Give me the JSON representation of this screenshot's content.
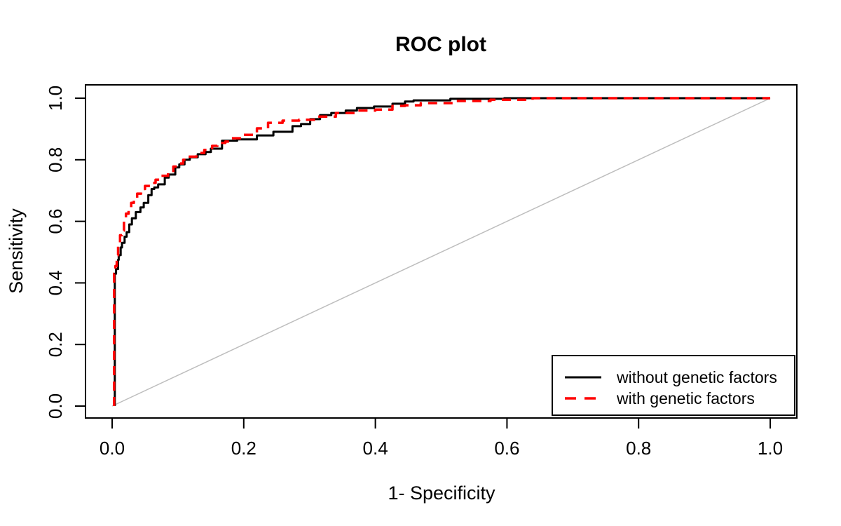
{
  "chart_data": {
    "type": "line",
    "title": "ROC plot",
    "xlabel": "1- Specificity",
    "ylabel": "Sensitivity",
    "xlim": [
      0.0,
      1.0
    ],
    "ylim": [
      0.0,
      1.0
    ],
    "grid": false,
    "legend_position": "bottom-right",
    "x_tick_values": [
      0.0,
      0.2,
      0.4,
      0.6,
      0.8,
      1.0
    ],
    "x_tick_labels": [
      "0.0",
      "0.2",
      "0.4",
      "0.6",
      "0.8",
      "1.0"
    ],
    "y_tick_values": [
      0.0,
      0.2,
      0.4,
      0.6,
      0.8,
      1.0
    ],
    "y_tick_labels": [
      "0.0",
      "0.2",
      "0.4",
      "0.6",
      "0.8",
      "1.0"
    ],
    "reference_line": {
      "from": [
        0,
        0
      ],
      "to": [
        1,
        1
      ],
      "color": "#bdbdbd",
      "meaning": "chance diagonal"
    },
    "series": [
      {
        "name": "without genetic factors",
        "color": "#000000",
        "style": "solid",
        "points": [
          [
            0.004,
            0.0
          ],
          [
            0.004,
            0.29
          ],
          [
            0.006,
            0.43
          ],
          [
            0.009,
            0.445
          ],
          [
            0.01,
            0.475
          ],
          [
            0.013,
            0.49
          ],
          [
            0.015,
            0.515
          ],
          [
            0.019,
            0.53
          ],
          [
            0.022,
            0.55
          ],
          [
            0.026,
            0.565
          ],
          [
            0.03,
            0.59
          ],
          [
            0.036,
            0.61
          ],
          [
            0.043,
            0.63
          ],
          [
            0.048,
            0.645
          ],
          [
            0.055,
            0.66
          ],
          [
            0.06,
            0.685
          ],
          [
            0.064,
            0.705
          ],
          [
            0.07,
            0.71
          ],
          [
            0.08,
            0.72
          ],
          [
            0.086,
            0.742
          ],
          [
            0.096,
            0.752
          ],
          [
            0.102,
            0.775
          ],
          [
            0.11,
            0.785
          ],
          [
            0.118,
            0.8
          ],
          [
            0.13,
            0.808
          ],
          [
            0.142,
            0.818
          ],
          [
            0.15,
            0.825
          ],
          [
            0.167,
            0.836
          ],
          [
            0.19,
            0.862
          ],
          [
            0.22,
            0.866
          ],
          [
            0.245,
            0.879
          ],
          [
            0.274,
            0.891
          ],
          [
            0.287,
            0.909
          ],
          [
            0.301,
            0.916
          ],
          [
            0.316,
            0.932
          ],
          [
            0.333,
            0.945
          ],
          [
            0.355,
            0.952
          ],
          [
            0.372,
            0.96
          ],
          [
            0.398,
            0.968
          ],
          [
            0.426,
            0.973
          ],
          [
            0.445,
            0.982
          ],
          [
            0.458,
            0.989
          ],
          [
            0.514,
            0.993
          ],
          [
            0.596,
            0.998
          ],
          [
            0.7,
            1.0
          ],
          [
            1.0,
            1.0
          ]
        ]
      },
      {
        "name": "with genetic factors",
        "color": "#ff0000",
        "style": "dashed",
        "points": [
          [
            0.003,
            0.0
          ],
          [
            0.003,
            0.29
          ],
          [
            0.005,
            0.43
          ],
          [
            0.007,
            0.455
          ],
          [
            0.009,
            0.49
          ],
          [
            0.012,
            0.53
          ],
          [
            0.015,
            0.555
          ],
          [
            0.018,
            0.57
          ],
          [
            0.021,
            0.6
          ],
          [
            0.025,
            0.625
          ],
          [
            0.029,
            0.645
          ],
          [
            0.033,
            0.66
          ],
          [
            0.038,
            0.675
          ],
          [
            0.044,
            0.69
          ],
          [
            0.05,
            0.705
          ],
          [
            0.058,
            0.715
          ],
          [
            0.066,
            0.725
          ],
          [
            0.075,
            0.735
          ],
          [
            0.085,
            0.748
          ],
          [
            0.093,
            0.758
          ],
          [
            0.1,
            0.778
          ],
          [
            0.108,
            0.788
          ],
          [
            0.116,
            0.8
          ],
          [
            0.128,
            0.81
          ],
          [
            0.14,
            0.822
          ],
          [
            0.152,
            0.832
          ],
          [
            0.16,
            0.845
          ],
          [
            0.172,
            0.855
          ],
          [
            0.181,
            0.859
          ],
          [
            0.199,
            0.87
          ],
          [
            0.22,
            0.881
          ],
          [
            0.237,
            0.902
          ],
          [
            0.259,
            0.92
          ],
          [
            0.284,
            0.927
          ],
          [
            0.31,
            0.93
          ],
          [
            0.34,
            0.94
          ],
          [
            0.37,
            0.952
          ],
          [
            0.4,
            0.96
          ],
          [
            0.426,
            0.963
          ],
          [
            0.445,
            0.975
          ],
          [
            0.469,
            0.977
          ],
          [
            0.522,
            0.984
          ],
          [
            0.575,
            0.991
          ],
          [
            0.639,
            0.995
          ],
          [
            0.7,
            1.0
          ],
          [
            1.0,
            1.0
          ]
        ]
      }
    ]
  },
  "legend": {
    "items": [
      {
        "label": "without genetic factors",
        "line": "solid-black"
      },
      {
        "label": "with genetic factors",
        "line": "dashed-red"
      }
    ]
  }
}
